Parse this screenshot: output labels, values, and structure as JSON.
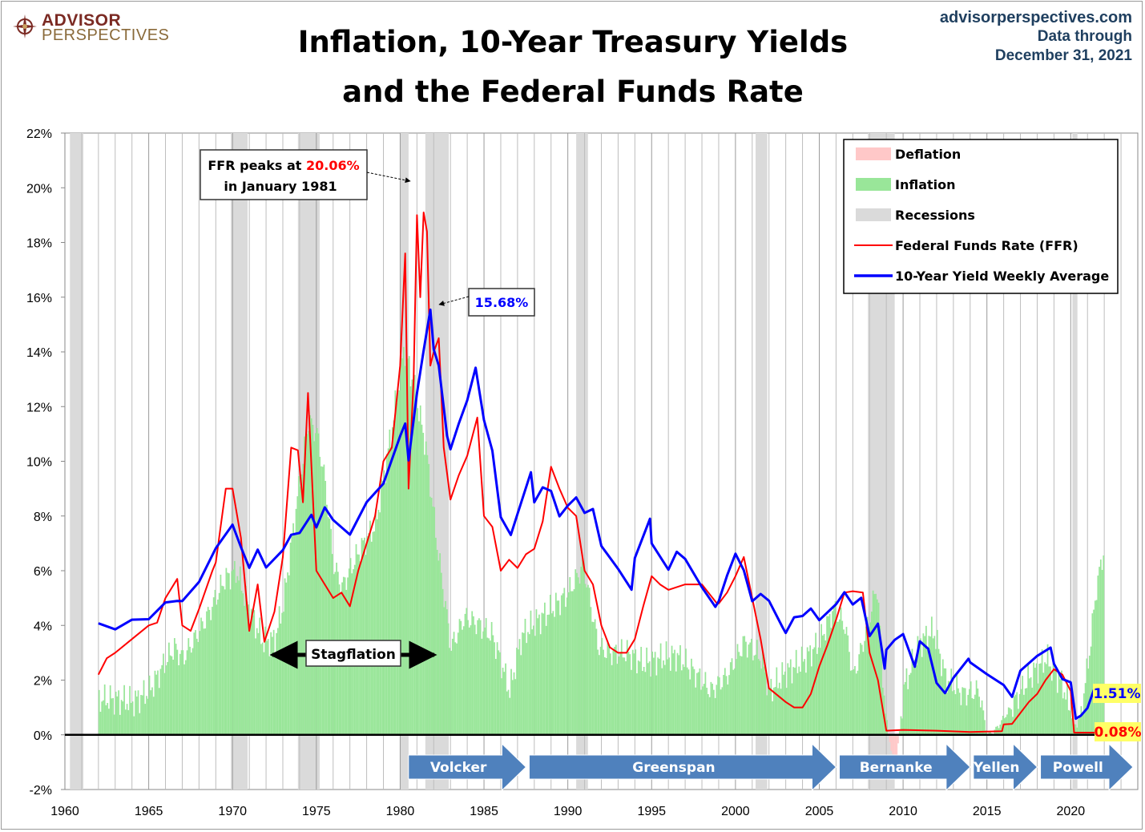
{
  "header": {
    "title_line1": "Inflation, 10-Year Treasury Yields",
    "title_line2": "and the Federal Funds Rate",
    "logo_line1": "ADVISOR",
    "logo_line2": "PERSPECTIVES",
    "site": "advisorperspectives.com",
    "data_through_1": "Data through",
    "data_through_2": "December 31, 2021"
  },
  "colors": {
    "ffr": "#ff0000",
    "yield": "#0000ff",
    "inflation": "#99e699",
    "deflation": "#ffc8c8",
    "recession": "#dadada",
    "era_box": "#4f81bd"
  },
  "chart_data": {
    "type": "line",
    "xlim": [
      1960,
      2024
    ],
    "ylim": [
      -2,
      22
    ],
    "x_ticks": [
      "1960",
      "1965",
      "1970",
      "1975",
      "1980",
      "1985",
      "1990",
      "1995",
      "2000",
      "2005",
      "2010",
      "2015",
      "2020"
    ],
    "y_ticks": [
      "-2%",
      "0%",
      "2%",
      "4%",
      "6%",
      "8%",
      "10%",
      "12%",
      "14%",
      "16%",
      "18%",
      "20%",
      "22%"
    ],
    "grid": "vertical yearly",
    "legend_position": "top-right",
    "legend": [
      "Deflation",
      "Inflation",
      "Recessions",
      "Federal Funds Rate (FFR)",
      "10-Year Yield Weekly Average"
    ],
    "recessions": [
      [
        1960.3,
        1961.1
      ],
      [
        1969.9,
        1970.9
      ],
      [
        1973.9,
        1975.2
      ],
      [
        1980.0,
        1980.5
      ],
      [
        1981.5,
        1982.9
      ],
      [
        1990.5,
        1991.2
      ],
      [
        2001.2,
        2001.9
      ],
      [
        2007.9,
        2009.5
      ],
      [
        2020.1,
        2020.4
      ]
    ],
    "inflation": {
      "x": [
        1962,
        1963,
        1964,
        1965,
        1965.8,
        1966.5,
        1967,
        1967.8,
        1968.5,
        1969.5,
        1970.2,
        1971,
        1971.8,
        1972.5,
        1973,
        1973.8,
        1974.5,
        1975,
        1975.5,
        1976,
        1976.5,
        1977.5,
        1978.5,
        1979.5,
        1980.2,
        1980.8,
        1981.5,
        1982.2,
        1983,
        1983.8,
        1984.5,
        1985.5,
        1986.5,
        1987.2,
        1988,
        1989,
        1990,
        1990.9,
        1991.8,
        1992.5,
        1993.5,
        1994.5,
        1995.5,
        1996.5,
        1997.5,
        1998.5,
        1999.5,
        2000.5,
        2001.5,
        2002,
        2003,
        2004,
        2005,
        2005.8,
        2006.5,
        2007,
        2007.9,
        2008.4,
        2008.9,
        2009.5,
        2010,
        2011,
        2011.8,
        2012.5,
        2013.5,
        2014.5,
        2015,
        2015.5,
        2016.5,
        2017.5,
        2018.5,
        2019.5,
        2020.2,
        2020.5,
        2021,
        2021.5,
        2021.95
      ],
      "values": [
        1.3,
        1.3,
        1.2,
        1.6,
        2.5,
        3.2,
        2.8,
        3.6,
        4.4,
        5.7,
        6.0,
        4.5,
        3.4,
        3.5,
        4.8,
        8.5,
        11.5,
        11.0,
        9.2,
        6.2,
        5.4,
        6.7,
        7.7,
        11.3,
        14.2,
        12.7,
        10.5,
        6.8,
        3.2,
        4.3,
        4.1,
        3.6,
        1.6,
        3.6,
        4.1,
        4.6,
        5.2,
        6.2,
        3.2,
        3.0,
        3.0,
        2.6,
        2.8,
        2.9,
        2.3,
        1.6,
        2.2,
        3.4,
        2.8,
        1.6,
        2.3,
        2.7,
        3.4,
        4.6,
        4.0,
        2.1,
        4.1,
        5.5,
        0.8,
        -1.5,
        1.7,
        3.4,
        3.8,
        2.1,
        1.5,
        1.6,
        0.0,
        0.2,
        1.1,
        2.1,
        2.8,
        1.8,
        0.3,
        0.6,
        2.6,
        5.4,
        6.8
      ]
    },
    "series": [
      {
        "name": "Federal Funds Rate (FFR)",
        "x": [
          1962,
          1962.5,
          1963,
          1964,
          1965,
          1965.5,
          1966,
          1966.7,
          1967,
          1967.5,
          1968,
          1968.8,
          1969,
          1969.6,
          1970,
          1970.5,
          1971,
          1971.5,
          1971.9,
          1972.5,
          1973,
          1973.5,
          1973.9,
          1974.2,
          1974.5,
          1975,
          1975.5,
          1976,
          1976.5,
          1977,
          1977.5,
          1978,
          1978.5,
          1979,
          1979.5,
          1980,
          1980.3,
          1980.5,
          1980.8,
          1981,
          1981.2,
          1981.4,
          1981.6,
          1981.8,
          1982,
          1982.3,
          1982.6,
          1983,
          1983.5,
          1984,
          1984.6,
          1985,
          1985.5,
          1986,
          1986.5,
          1987,
          1987.5,
          1988,
          1988.5,
          1989,
          1989.5,
          1990,
          1990.5,
          1991,
          1991.5,
          1992,
          1992.5,
          1993,
          1993.5,
          1994,
          1994.5,
          1995,
          1995.5,
          1996,
          1997,
          1998,
          1998.9,
          1999,
          1999.5,
          2000,
          2000.5,
          2001,
          2001.5,
          2002,
          2003,
          2003.5,
          2004,
          2004.5,
          2005,
          2005.5,
          2006,
          2006.5,
          2007,
          2007.6,
          2008,
          2008.5,
          2009,
          2010,
          2012,
          2014,
          2015.9,
          2016,
          2016.5,
          2017,
          2017.5,
          2018,
          2018.5,
          2019,
          2019.5,
          2020,
          2020.2,
          2021,
          2021.95
        ],
        "values": [
          2.2,
          2.8,
          3.0,
          3.5,
          4.0,
          4.1,
          5.0,
          5.7,
          4.0,
          3.8,
          4.6,
          6.0,
          6.3,
          9.0,
          9.0,
          7.2,
          3.8,
          5.5,
          3.4,
          4.5,
          6.5,
          10.5,
          10.4,
          8.5,
          12.5,
          6.0,
          5.5,
          5.0,
          5.2,
          4.7,
          6.0,
          7.0,
          8.0,
          10.0,
          10.5,
          13.5,
          17.6,
          9.0,
          13.0,
          19.0,
          16.0,
          19.1,
          18.4,
          13.5,
          14.0,
          14.5,
          10.5,
          8.6,
          9.5,
          10.2,
          11.6,
          8.0,
          7.6,
          6.0,
          6.4,
          6.1,
          6.6,
          6.8,
          7.8,
          9.8,
          9.0,
          8.3,
          8.0,
          6.0,
          5.5,
          4.0,
          3.2,
          3.0,
          3.0,
          3.5,
          4.7,
          5.8,
          5.5,
          5.3,
          5.5,
          5.5,
          4.8,
          4.8,
          5.2,
          5.8,
          6.5,
          5.0,
          3.5,
          1.7,
          1.2,
          1.0,
          1.0,
          1.5,
          2.5,
          3.3,
          4.2,
          5.2,
          5.25,
          5.2,
          3.0,
          2.0,
          0.15,
          0.18,
          0.15,
          0.1,
          0.13,
          0.38,
          0.4,
          0.8,
          1.2,
          1.5,
          2.0,
          2.4,
          2.2,
          1.6,
          0.08,
          0.08,
          0.08
        ]
      },
      {
        "name": "10-Year Yield Weekly Average",
        "x": [
          1962,
          1963,
          1964,
          1965,
          1966,
          1966.7,
          1967,
          1968,
          1969,
          1970,
          1970.5,
          1971,
          1971.5,
          1972,
          1973,
          1973.5,
          1974,
          1974.7,
          1975,
          1975.5,
          1976,
          1977,
          1978,
          1979,
          1980,
          1980.3,
          1980.5,
          1981,
          1981.4,
          1981.8,
          1982,
          1982.3,
          1982.8,
          1983,
          1983.5,
          1984,
          1984.5,
          1985,
          1985.5,
          1986,
          1986.6,
          1987,
          1987.8,
          1988,
          1988.5,
          1989,
          1989.5,
          1990,
          1990.5,
          1991,
          1991.5,
          1992,
          1993,
          1993.8,
          1994,
          1994.9,
          1995,
          1996,
          1996.5,
          1997,
          1998,
          1998.8,
          1999,
          1999.5,
          2000,
          2000.5,
          2001,
          2001.5,
          2002,
          2002.8,
          2003,
          2003.5,
          2004,
          2004.5,
          2005,
          2006,
          2006.5,
          2007,
          2007.5,
          2008,
          2008.5,
          2008.9,
          2009,
          2009.5,
          2010,
          2010.7,
          2011,
          2011.5,
          2012,
          2012.5,
          2013,
          2013.9,
          2014,
          2015,
          2016,
          2016.5,
          2017,
          2018,
          2018.8,
          2019,
          2019.5,
          2020,
          2020.3,
          2020.6,
          2021,
          2021.4,
          2021.95
        ],
        "values": [
          4.0,
          3.9,
          4.2,
          4.2,
          4.9,
          5.0,
          4.8,
          5.7,
          6.7,
          7.8,
          6.9,
          6.0,
          6.7,
          6.2,
          6.7,
          7.2,
          7.4,
          8.0,
          7.6,
          8.2,
          7.8,
          7.4,
          8.4,
          9.3,
          10.8,
          11.5,
          10.0,
          12.6,
          14.0,
          15.5,
          14.0,
          13.6,
          11.0,
          10.5,
          11.5,
          12.2,
          13.3,
          11.5,
          10.5,
          8.0,
          7.3,
          8.0,
          9.5,
          8.6,
          9.0,
          8.8,
          8.0,
          8.5,
          8.7,
          8.0,
          8.2,
          7.0,
          6.0,
          5.4,
          6.5,
          7.8,
          7.0,
          6.0,
          6.8,
          6.5,
          5.3,
          4.6,
          5.0,
          5.8,
          6.5,
          6.0,
          5.0,
          5.2,
          4.8,
          4.0,
          3.8,
          4.4,
          4.3,
          4.5,
          4.2,
          4.8,
          5.1,
          4.7,
          5.1,
          3.7,
          4.0,
          2.4,
          3.0,
          3.5,
          3.8,
          2.6,
          3.3,
          3.1,
          2.0,
          1.6,
          2.0,
          2.9,
          2.7,
          2.2,
          1.8,
          1.5,
          2.4,
          2.8,
          3.1,
          2.7,
          2.0,
          1.8,
          0.7,
          0.6,
          1.1,
          1.6,
          1.51
        ]
      }
    ],
    "annotations": {
      "ffr_peak_prefix": "FFR peaks at ",
      "ffr_peak_value": "20.06%",
      "ffr_peak_line2": "in January 1981",
      "yield_peak": "15.68%",
      "stagflation": "Stagflation",
      "last_yield": "1.51%",
      "last_ffr": "0.08%"
    },
    "eras": [
      {
        "label": "Volcker",
        "start": 1980.4,
        "end": 1987.6
      },
      {
        "label": "Greenspan",
        "start": 1987.6,
        "end": 2006.1
      },
      {
        "label": "Bernanke",
        "start": 2006.1,
        "end": 2014.1
      },
      {
        "label": "Yellen",
        "start": 2014.1,
        "end": 2018.1
      },
      {
        "label": "Powell",
        "start": 2018.1,
        "end": 2024.0
      }
    ]
  }
}
